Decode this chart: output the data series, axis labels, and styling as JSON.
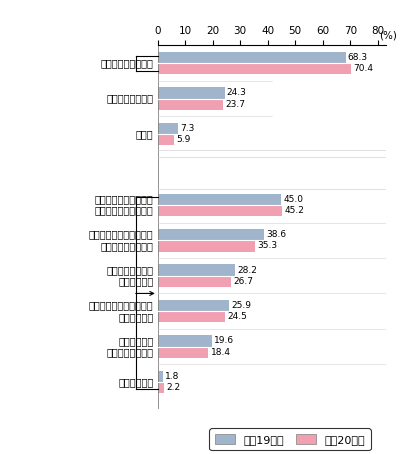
{
  "categories": [
    "何らかの対策を実施",
    "何も行っていない",
    "無回答",
    "",
    "掲示板等のウェブ上に\n個人情報を掲載しない",
    "軽率にウェブサイトから\nダウンロードしない",
    "懸賞等のサイトの\n利用を控える",
    "クレジットカード番号の\n入力を控える",
    "スパイウェア\n対策ソフトを利用",
    "その他の対策"
  ],
  "values_h19": [
    68.3,
    24.3,
    7.3,
    null,
    45.0,
    38.6,
    28.2,
    25.9,
    19.6,
    1.8
  ],
  "values_h20": [
    70.4,
    23.7,
    5.9,
    null,
    45.2,
    35.3,
    26.7,
    24.5,
    18.4,
    2.2
  ],
  "labels_h19": [
    "68.3",
    "24.3",
    "7.3",
    "",
    "45.0",
    "38.6",
    "28.2",
    "25.9",
    "19.6",
    "1.8"
  ],
  "labels_h20": [
    "70.4",
    "23.7",
    "5.9",
    "",
    "45.2",
    "35.3",
    "26.7",
    "24.5",
    "18.4",
    "2.2"
  ],
  "color_h19": "#a0b4cc",
  "color_h20": "#f0a0b0",
  "xlim_max": 80,
  "xticks": [
    0,
    10,
    20,
    30,
    40,
    50,
    60,
    70,
    80
  ],
  "xlabel": "(%)",
  "legend_h19": "平成19年末",
  "legend_h20": "平成20年末",
  "bar_height": 0.32,
  "figsize": [
    4.15,
    4.54
  ],
  "dpi": 100,
  "label_fontsize": 6.5,
  "tick_fontsize": 7.5,
  "legend_fontsize": 8
}
